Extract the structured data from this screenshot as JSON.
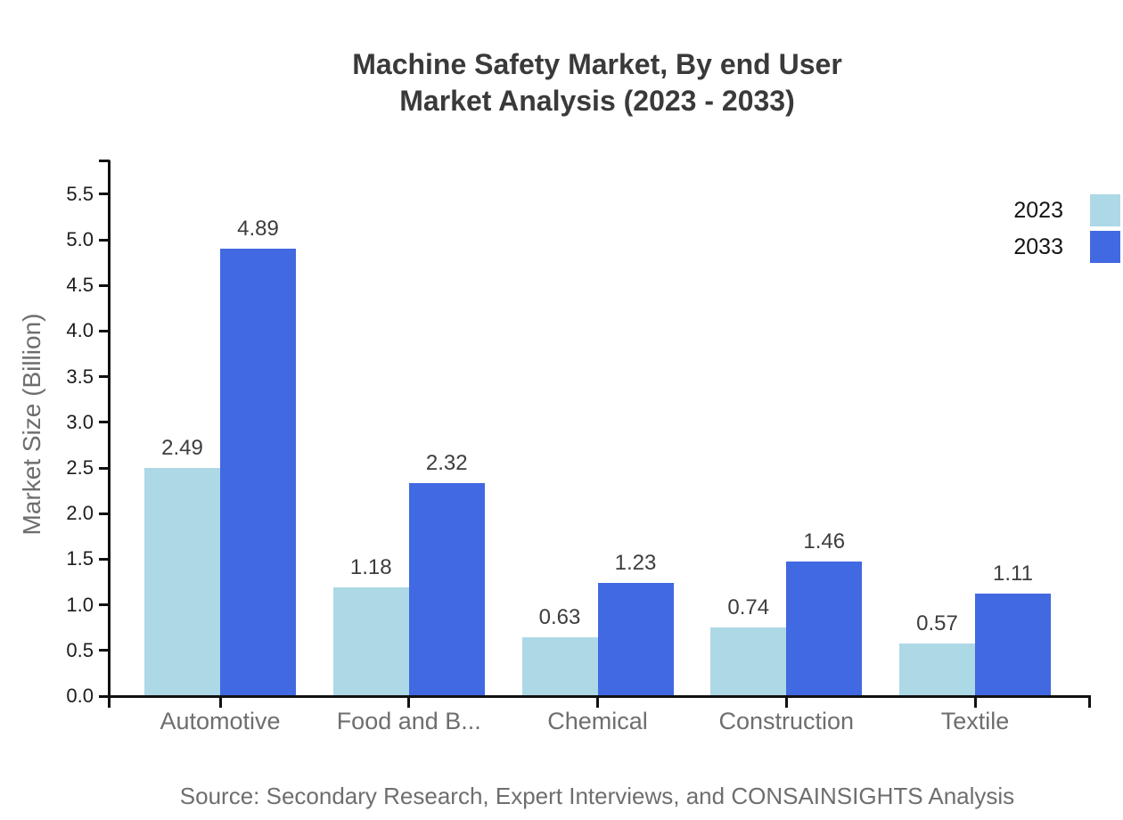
{
  "title": {
    "line1": "Machine Safety Market, By end User",
    "line2": "Market Analysis (2023 - 2033)"
  },
  "source": "Source: Secondary Research, Expert Interviews, and CONSAINSIGHTS Analysis",
  "chart_data": {
    "type": "bar",
    "title": "Machine Safety Market, By end User Market Analysis (2023 - 2033)",
    "categories": [
      "Automotive",
      "Food and B...",
      "Chemical",
      "Construction",
      "Textile"
    ],
    "series": [
      {
        "name": "2023",
        "color": "#ADD8E6",
        "values": [
          2.49,
          1.18,
          0.63,
          0.74,
          0.57
        ]
      },
      {
        "name": "2033",
        "color": "#4169E1",
        "values": [
          4.89,
          2.32,
          1.23,
          1.46,
          1.11
        ]
      }
    ],
    "xlabel": "",
    "ylabel": "Market Size (Billion)",
    "ylim": [
      0,
      5.87
    ],
    "yticks": [
      0.0,
      0.5,
      1.0,
      1.5,
      2.0,
      2.5,
      3.0,
      3.5,
      4.0,
      4.5,
      5.0,
      5.5
    ],
    "grid": false,
    "legend_position": "top-right",
    "value_labels": true,
    "value_label_format": "0.00",
    "ytick_format": "0.0"
  },
  "colors": {
    "background": "#ffffff",
    "title": "#3a3a3a",
    "axis": "#111111",
    "ytick_label": "#1c1c1c",
    "category_label": "#6e6e6e",
    "value_label": "#3d3d3d",
    "legend_label": "#141414",
    "source": "#6e6e6e",
    "series_2023": "#ADD8E6",
    "series_2033": "#4169E1"
  }
}
